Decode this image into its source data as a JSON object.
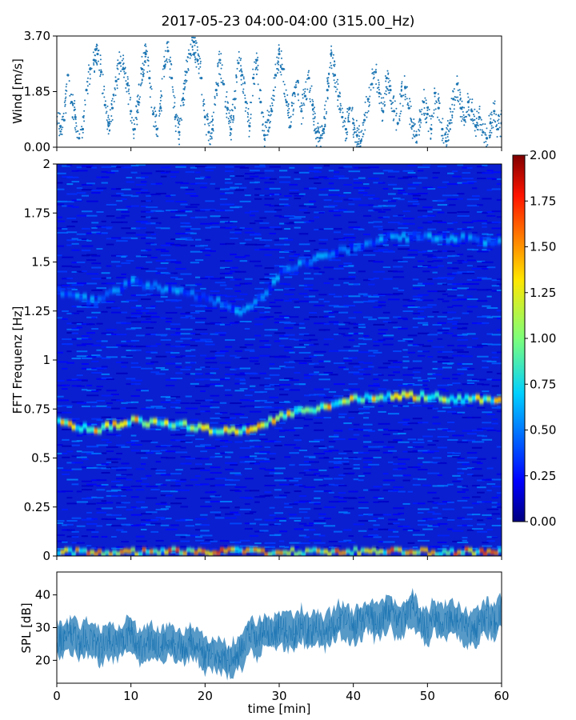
{
  "chart_data": {
    "title": "2017-05-23 04:00-04:00 (315.00_Hz)",
    "xlabel": "time [min]",
    "xlim": [
      0,
      60
    ],
    "xticks": [
      0,
      10,
      20,
      30,
      40,
      50,
      60
    ],
    "xtick_labels": [
      "0",
      "10",
      "20",
      "30",
      "40",
      "50",
      "60"
    ],
    "panels": [
      {
        "id": "wind",
        "type": "scatter",
        "ylabel": "Wind [m/s]",
        "ylim": [
          0,
          3.7
        ],
        "yticks": [
          0.0,
          1.85,
          3.7
        ],
        "ytick_labels": [
          "0.00",
          "1.85",
          "3.70"
        ],
        "color": "#1f77b4",
        "points": [
          [
            0.0,
            0.8
          ],
          [
            0.5,
            0.7
          ],
          [
            1.0,
            0.9
          ],
          [
            1.5,
            2.4
          ],
          [
            2.0,
            1.5
          ],
          [
            2.5,
            1.0
          ],
          [
            3.0,
            0.3
          ],
          [
            3.5,
            0.6
          ],
          [
            4.0,
            1.9
          ],
          [
            4.5,
            2.6
          ],
          [
            5.0,
            2.9
          ],
          [
            5.5,
            3.1
          ],
          [
            6.0,
            2.5
          ],
          [
            6.5,
            1.4
          ],
          [
            7.0,
            0.8
          ],
          [
            7.5,
            1.3
          ],
          [
            8.0,
            2.2
          ],
          [
            8.5,
            2.8
          ],
          [
            9.0,
            2.6
          ],
          [
            9.5,
            2.1
          ],
          [
            10.0,
            1.2
          ],
          [
            10.5,
            0.6
          ],
          [
            11.0,
            1.5
          ],
          [
            11.5,
            2.6
          ],
          [
            12.0,
            3.1
          ],
          [
            12.5,
            2.3
          ],
          [
            13.0,
            1.1
          ],
          [
            13.5,
            0.6
          ],
          [
            14.0,
            1.3
          ],
          [
            14.5,
            2.7
          ],
          [
            15.0,
            3.2
          ],
          [
            15.5,
            2.3
          ],
          [
            16.0,
            1.0
          ],
          [
            16.5,
            0.5
          ],
          [
            17.0,
            1.6
          ],
          [
            17.5,
            2.5
          ],
          [
            18.0,
            3.1
          ],
          [
            18.5,
            3.5
          ],
          [
            19.0,
            2.9
          ],
          [
            19.5,
            2.3
          ],
          [
            20.0,
            1.0
          ],
          [
            20.5,
            0.5
          ],
          [
            21.0,
            0.6
          ],
          [
            21.5,
            1.9
          ],
          [
            22.0,
            2.9
          ],
          [
            22.5,
            2.1
          ],
          [
            23.0,
            1.3
          ],
          [
            23.5,
            0.6
          ],
          [
            24.0,
            1.6
          ],
          [
            24.5,
            2.8
          ],
          [
            25.0,
            2.4
          ],
          [
            25.5,
            1.5
          ],
          [
            26.0,
            0.7
          ],
          [
            26.5,
            2.3
          ],
          [
            27.0,
            2.9
          ],
          [
            27.5,
            1.5
          ],
          [
            28.0,
            0.4
          ],
          [
            28.5,
            0.9
          ],
          [
            29.0,
            1.2
          ],
          [
            29.5,
            2.4
          ],
          [
            30.0,
            3.1
          ],
          [
            30.5,
            2.6
          ],
          [
            31.0,
            1.5
          ],
          [
            31.5,
            0.7
          ],
          [
            32.0,
            1.8
          ],
          [
            32.5,
            2.2
          ],
          [
            33.0,
            1.2
          ],
          [
            33.5,
            1.7
          ],
          [
            34.0,
            2.3
          ],
          [
            34.5,
            1.4
          ],
          [
            35.0,
            0.5
          ],
          [
            35.5,
            0.3
          ],
          [
            36.0,
            0.6
          ],
          [
            36.5,
            1.9
          ],
          [
            37.0,
            3.1
          ],
          [
            37.5,
            2.4
          ],
          [
            38.0,
            1.7
          ],
          [
            38.5,
            1.0
          ],
          [
            39.0,
            0.6
          ],
          [
            39.5,
            1.3
          ],
          [
            40.0,
            0.8
          ],
          [
            40.5,
            0.4
          ],
          [
            41.0,
            0.2
          ],
          [
            41.5,
            0.9
          ],
          [
            42.0,
            1.6
          ],
          [
            42.5,
            2.1
          ],
          [
            43.0,
            2.5
          ],
          [
            43.5,
            1.8
          ],
          [
            44.0,
            1.2
          ],
          [
            44.5,
            2.3
          ],
          [
            45.0,
            1.9
          ],
          [
            45.5,
            1.2
          ],
          [
            46.0,
            0.8
          ],
          [
            46.5,
            1.7
          ],
          [
            47.0,
            2.0
          ],
          [
            47.5,
            1.3
          ],
          [
            48.0,
            0.7
          ],
          [
            48.5,
            0.4
          ],
          [
            49.0,
            0.9
          ],
          [
            49.5,
            1.5
          ],
          [
            50.0,
            1.1
          ],
          [
            50.5,
            0.6
          ],
          [
            51.0,
            1.8
          ],
          [
            51.5,
            1.3
          ],
          [
            52.0,
            0.6
          ],
          [
            52.5,
            0.2
          ],
          [
            53.0,
            0.8
          ],
          [
            53.5,
            1.6
          ],
          [
            54.0,
            2.1
          ],
          [
            54.5,
            1.3
          ],
          [
            55.0,
            0.9
          ],
          [
            55.5,
            1.5
          ],
          [
            56.0,
            1.2
          ],
          [
            56.5,
            0.7
          ],
          [
            57.0,
            1.0
          ],
          [
            57.5,
            0.5
          ],
          [
            58.0,
            0.3
          ],
          [
            58.5,
            0.8
          ],
          [
            59.0,
            1.2
          ],
          [
            59.5,
            0.6
          ],
          [
            60.0,
            0.8
          ]
        ]
      },
      {
        "id": "spectrogram",
        "type": "heatmap",
        "ylabel": "FFT Frequenz [Hz]",
        "ylim": [
          0,
          2
        ],
        "yticks": [
          0,
          0.25,
          0.5,
          0.75,
          1,
          1.25,
          1.5,
          1.75,
          2
        ],
        "ytick_labels": [
          "0",
          "0.25",
          "0.5",
          "0.75",
          "1",
          "1.25",
          "1.5",
          "1.75",
          "2"
        ],
        "colormap": "jet",
        "clim": [
          0,
          2
        ],
        "colorbar_ticks": [
          0.0,
          0.25,
          0.5,
          0.75,
          1.0,
          1.25,
          1.5,
          1.75,
          2.0
        ],
        "colorbar_tick_labels": [
          "0.00",
          "0.25",
          "0.50",
          "0.75",
          "1.00",
          "1.25",
          "1.50",
          "1.75",
          "2.00"
        ],
        "bands": [
          {
            "name": "fundamental",
            "points": [
              [
                0,
                0.68
              ],
              [
                5,
                0.65
              ],
              [
                10,
                0.69
              ],
              [
                15,
                0.68
              ],
              [
                20,
                0.65
              ],
              [
                25,
                0.64
              ],
              [
                30,
                0.71
              ],
              [
                35,
                0.76
              ],
              [
                40,
                0.8
              ],
              [
                45,
                0.82
              ],
              [
                50,
                0.82
              ],
              [
                55,
                0.8
              ],
              [
                60,
                0.8
              ]
            ],
            "level": 1.15
          },
          {
            "name": "second",
            "points": [
              [
                0,
                1.35
              ],
              [
                5,
                1.3
              ],
              [
                10,
                1.4
              ],
              [
                15,
                1.36
              ],
              [
                20,
                1.32
              ],
              [
                25,
                1.25
              ],
              [
                28,
                1.35
              ],
              [
                30,
                1.45
              ],
              [
                35,
                1.52
              ],
              [
                40,
                1.58
              ],
              [
                45,
                1.63
              ],
              [
                50,
                1.63
              ],
              [
                55,
                1.62
              ],
              [
                60,
                1.6
              ]
            ],
            "level": 0.5
          },
          {
            "name": "low",
            "points": [
              [
                0,
                0.02
              ],
              [
                60,
                0.02
              ]
            ],
            "level": 1.3
          }
        ]
      },
      {
        "id": "spl",
        "type": "line",
        "ylabel": "SPL [dB]",
        "ylim": [
          13,
          47
        ],
        "yticks": [
          20,
          30,
          40
        ],
        "ytick_labels": [
          "20",
          "30",
          "40"
        ],
        "color": "#1f77b4",
        "points": [
          [
            0,
            27
          ],
          [
            1,
            26
          ],
          [
            2,
            28
          ],
          [
            3,
            25
          ],
          [
            4,
            27
          ],
          [
            5,
            26
          ],
          [
            6,
            24
          ],
          [
            7,
            26
          ],
          [
            8,
            25
          ],
          [
            9,
            27
          ],
          [
            10,
            29
          ],
          [
            11,
            24
          ],
          [
            12,
            25
          ],
          [
            13,
            26
          ],
          [
            14,
            24
          ],
          [
            15,
            26
          ],
          [
            16,
            25
          ],
          [
            17,
            24
          ],
          [
            18,
            26
          ],
          [
            19,
            25
          ],
          [
            20,
            21
          ],
          [
            21,
            22
          ],
          [
            22,
            21
          ],
          [
            23,
            20
          ],
          [
            24,
            21
          ],
          [
            25,
            23
          ],
          [
            26,
            28
          ],
          [
            27,
            26
          ],
          [
            28,
            29
          ],
          [
            29,
            28
          ],
          [
            30,
            30
          ],
          [
            31,
            29
          ],
          [
            32,
            28
          ],
          [
            33,
            31
          ],
          [
            34,
            29
          ],
          [
            35,
            30
          ],
          [
            36,
            28
          ],
          [
            37,
            30
          ],
          [
            38,
            33
          ],
          [
            39,
            31
          ],
          [
            40,
            30
          ],
          [
            41,
            32
          ],
          [
            42,
            34
          ],
          [
            43,
            31
          ],
          [
            44,
            33
          ],
          [
            45,
            35
          ],
          [
            46,
            31
          ],
          [
            47,
            34
          ],
          [
            48,
            36
          ],
          [
            49,
            32
          ],
          [
            50,
            30
          ],
          [
            51,
            34
          ],
          [
            52,
            31
          ],
          [
            53,
            33
          ],
          [
            54,
            32
          ],
          [
            55,
            30
          ],
          [
            56,
            29
          ],
          [
            57,
            31
          ],
          [
            58,
            33
          ],
          [
            59,
            32
          ],
          [
            60,
            35
          ]
        ]
      }
    ]
  }
}
